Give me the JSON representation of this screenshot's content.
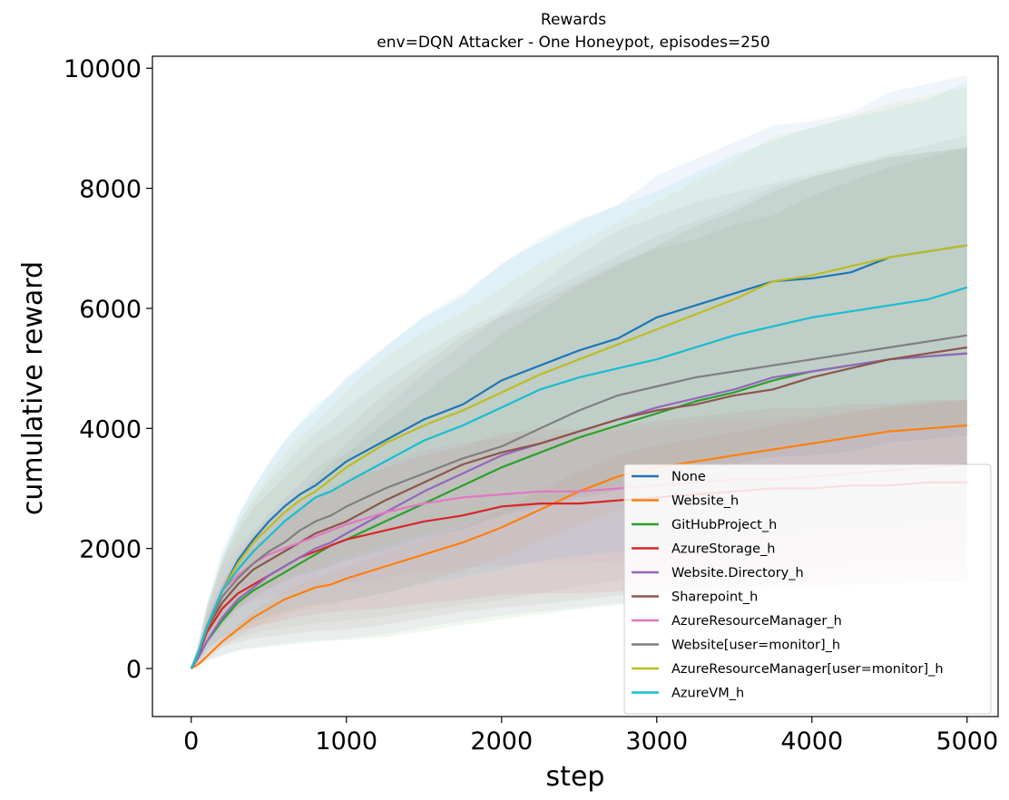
{
  "chart_data": {
    "type": "line",
    "title": "Rewards",
    "subtitle": "env=DQN Attacker - One Honeypot, episodes=250",
    "xlabel": "step",
    "ylabel": "cumulative reward",
    "xlim": [
      -250,
      5200
    ],
    "ylim": [
      -800,
      10200
    ],
    "xticks": [
      0,
      1000,
      2000,
      3000,
      4000,
      5000
    ],
    "yticks": [
      0,
      2000,
      4000,
      6000,
      8000,
      10000
    ],
    "grid": false,
    "legend_position": "lower-right",
    "bands": "shaded region per series (±1 std)",
    "x": [
      0,
      50,
      100,
      200,
      300,
      400,
      500,
      600,
      700,
      800,
      900,
      1000,
      1250,
      1500,
      1750,
      2000,
      2250,
      2500,
      2750,
      3000,
      3250,
      3500,
      3750,
      4000,
      4250,
      4500,
      4750,
      5000
    ],
    "series": [
      {
        "name": "None",
        "color": "#1f77b4",
        "upper": 9800,
        "values": [
          0,
          300,
          700,
          1300,
          1800,
          2150,
          2450,
          2700,
          2900,
          3050,
          3250,
          3450,
          3800,
          4150,
          4400,
          4800,
          5050,
          5300,
          5500,
          5850,
          6050,
          6250,
          6450,
          6500,
          6600,
          6850,
          6950,
          7050
        ]
      },
      {
        "name": "Website_h",
        "color": "#ff7f0e",
        "upper": 4400,
        "values": [
          0,
          80,
          200,
          450,
          650,
          850,
          1000,
          1150,
          1250,
          1350,
          1400,
          1500,
          1700,
          1900,
          2100,
          2350,
          2650,
          2950,
          3200,
          3350,
          3450,
          3550,
          3650,
          3750,
          3850,
          3950,
          4000,
          4050
        ]
      },
      {
        "name": "GitHubProject_h",
        "color": "#2ca02c",
        "upper": 8600,
        "values": [
          0,
          200,
          450,
          800,
          1100,
          1300,
          1450,
          1600,
          1750,
          1900,
          2050,
          2150,
          2450,
          2750,
          3050,
          3350,
          3600,
          3850,
          4050,
          4250,
          4450,
          4600,
          4800,
          4950,
          5050,
          5150,
          5200,
          5250
        ]
      },
      {
        "name": "AzureStorage_h",
        "color": "#d62728",
        "upper": 4400,
        "values": [
          0,
          250,
          600,
          1000,
          1250,
          1400,
          1550,
          1700,
          1850,
          1950,
          2050,
          2150,
          2300,
          2450,
          2550,
          2700,
          2750,
          2750,
          2800,
          2850,
          2900,
          2950,
          3000,
          3000,
          3050,
          3050,
          3100,
          3100
        ]
      },
      {
        "name": "Website.Directory_h",
        "color": "#9467bd",
        "upper": 8600,
        "values": [
          0,
          200,
          450,
          850,
          1150,
          1350,
          1550,
          1700,
          1850,
          2000,
          2100,
          2250,
          2600,
          2950,
          3250,
          3550,
          3750,
          3950,
          4150,
          4350,
          4500,
          4650,
          4850,
          4950,
          5050,
          5150,
          5200,
          5250
        ]
      },
      {
        "name": "Sharepoint_h",
        "color": "#8c564b",
        "upper": 8600,
        "values": [
          0,
          300,
          650,
          1100,
          1400,
          1650,
          1800,
          1950,
          2100,
          2250,
          2350,
          2450,
          2800,
          3100,
          3400,
          3600,
          3750,
          3950,
          4150,
          4300,
          4400,
          4550,
          4650,
          4850,
          5000,
          5150,
          5250,
          5350
        ]
      },
      {
        "name": "AzureResourceManager_h",
        "color": "#e377c2",
        "upper": 4400,
        "values": [
          0,
          300,
          700,
          1300,
          1550,
          1750,
          1900,
          2000,
          2100,
          2200,
          2300,
          2400,
          2600,
          2750,
          2850,
          2900,
          2950,
          2950,
          3000,
          3050,
          3100,
          3150,
          3150,
          3200,
          3250,
          3300,
          3350,
          3400
        ]
      },
      {
        "name": "Website[user=monitor]_h",
        "color": "#7f7f7f",
        "upper": 8800,
        "values": [
          0,
          280,
          650,
          1200,
          1500,
          1750,
          1950,
          2100,
          2300,
          2450,
          2550,
          2700,
          3000,
          3250,
          3500,
          3700,
          4000,
          4300,
          4550,
          4700,
          4850,
          4950,
          5050,
          5150,
          5250,
          5350,
          5450,
          5550
        ]
      },
      {
        "name": "AzureResourceManager[user=monitor]_h",
        "color": "#bcbd22",
        "upper": 9600,
        "values": [
          0,
          300,
          700,
          1300,
          1750,
          2100,
          2350,
          2600,
          2800,
          2950,
          3150,
          3350,
          3750,
          4050,
          4300,
          4600,
          4900,
          5150,
          5400,
          5650,
          5900,
          6150,
          6450,
          6550,
          6700,
          6850,
          6950,
          7050
        ]
      },
      {
        "name": "AzureVM_h",
        "color": "#17becf",
        "upper": 9700,
        "values": [
          0,
          300,
          700,
          1300,
          1650,
          1950,
          2200,
          2450,
          2650,
          2850,
          2950,
          3100,
          3450,
          3800,
          4050,
          4350,
          4650,
          4850,
          5000,
          5150,
          5350,
          5550,
          5700,
          5850,
          5950,
          6050,
          6150,
          6350
        ]
      }
    ]
  }
}
